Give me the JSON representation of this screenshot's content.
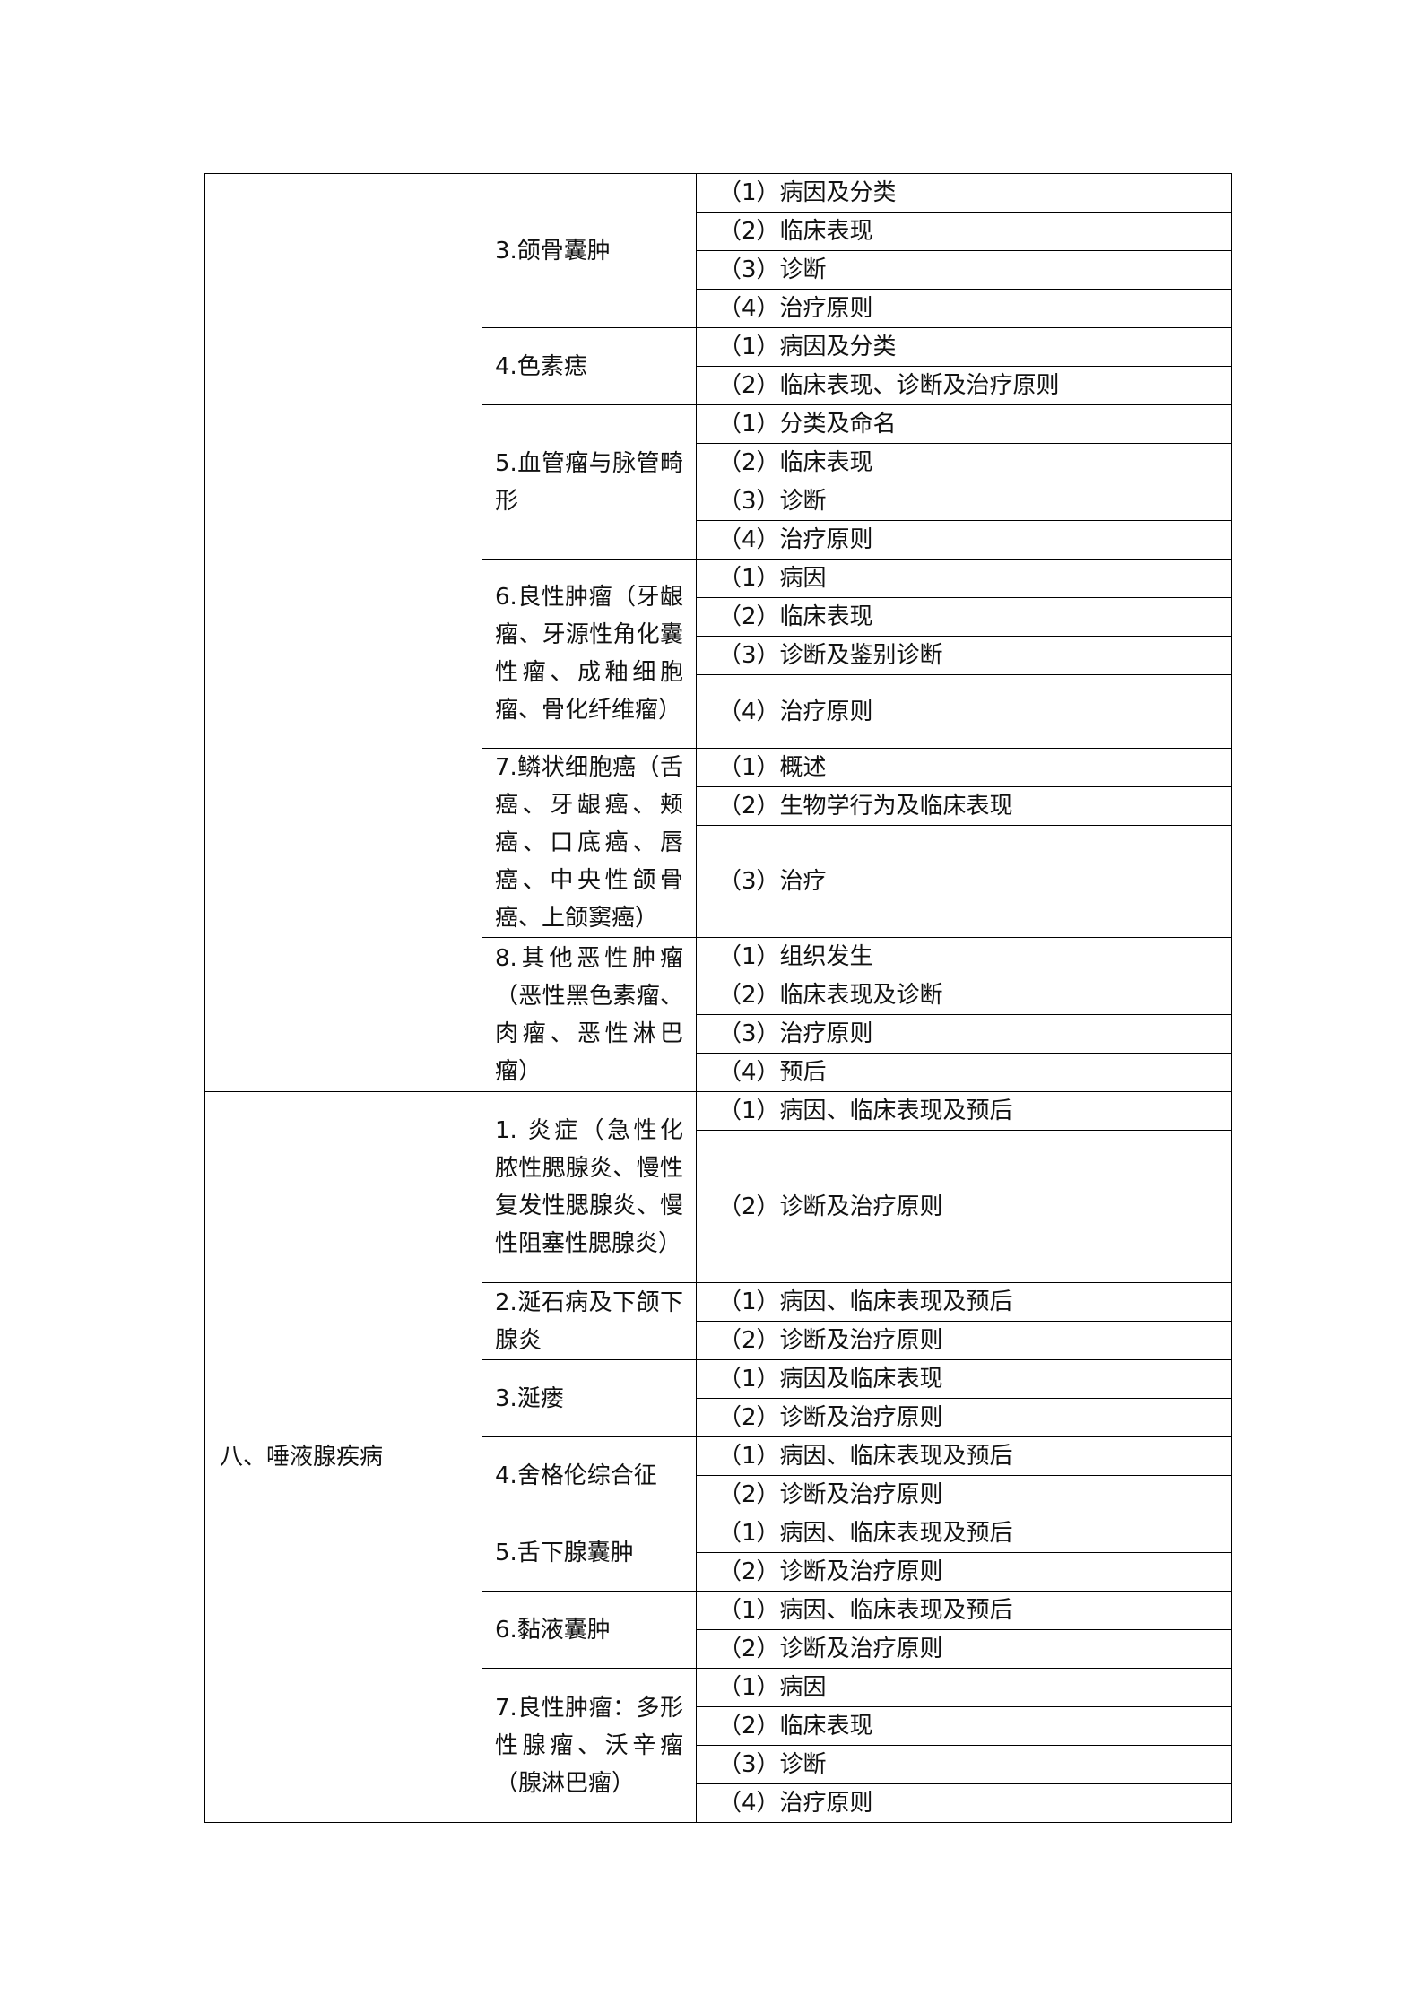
{
  "sections": [
    {
      "name": "",
      "topics": [
        {
          "title": "3.颌骨囊肿",
          "items": [
            "（1）病因及分类",
            "（2）临床表现",
            "（3）诊断",
            "（4）治疗原则"
          ]
        },
        {
          "title": "4.色素痣",
          "items": [
            "（1）病因及分类",
            "（2）临床表现、诊断及治疗原则"
          ]
        },
        {
          "title": "5.血管瘤与脉管畸形",
          "items": [
            "（1）分类及命名",
            "（2）临床表现",
            "（3）诊断",
            "（4）治疗原则"
          ]
        },
        {
          "title": "6.良性肿瘤（牙龈瘤、牙源性角化囊性瘤、成釉细胞瘤、骨化纤维瘤）",
          "items": [
            "（1）病因",
            "（2）临床表现",
            "（3）诊断及鉴别诊断",
            "（4）治疗原则"
          ]
        },
        {
          "title": "7.鳞状细胞癌（舌癌、牙龈癌、颊癌、口底癌、唇癌、中央性颌骨癌、上颌窦癌）",
          "items": [
            "（1）概述",
            "（2）生物学行为及临床表现",
            "（3）治疗"
          ]
        },
        {
          "title": "8.其他恶性肿瘤（恶性黑色素瘤、肉瘤、恶性淋巴瘤）",
          "items": [
            "（1）组织发生",
            "（2）临床表现及诊断",
            "（3）治疗原则",
            "（4）预后"
          ]
        }
      ]
    },
    {
      "name": "八、唾液腺疾病",
      "topics": [
        {
          "title": "1. 炎症（急性化脓性腮腺炎、慢性复发性腮腺炎、慢性阻塞性腮腺炎）",
          "items": [
            "（1）病因、临床表现及预后",
            "（2）诊断及治疗原则"
          ]
        },
        {
          "title": "2.涎石病及下颌下腺炎",
          "items": [
            "（1）病因、临床表现及预后",
            "（2）诊断及治疗原则"
          ]
        },
        {
          "title": "3.涎瘘",
          "items": [
            "（1）病因及临床表现",
            "（2）诊断及治疗原则"
          ]
        },
        {
          "title": "4.舍格伦综合征",
          "items": [
            "（1）病因、临床表现及预后",
            "（2）诊断及治疗原则"
          ]
        },
        {
          "title": "5.舌下腺囊肿",
          "items": [
            "（1）病因、临床表现及预后",
            "（2）诊断及治疗原则"
          ]
        },
        {
          "title": "6.黏液囊肿",
          "items": [
            "（1）病因、临床表现及预后",
            "（2）诊断及治疗原则"
          ]
        },
        {
          "title": "7.良性肿瘤：多形性腺瘤、沃辛瘤（腺淋巴瘤）",
          "items": [
            "（1）病因",
            "（2）临床表现",
            "（3）诊断",
            "（4）治疗原则"
          ]
        }
      ]
    }
  ]
}
